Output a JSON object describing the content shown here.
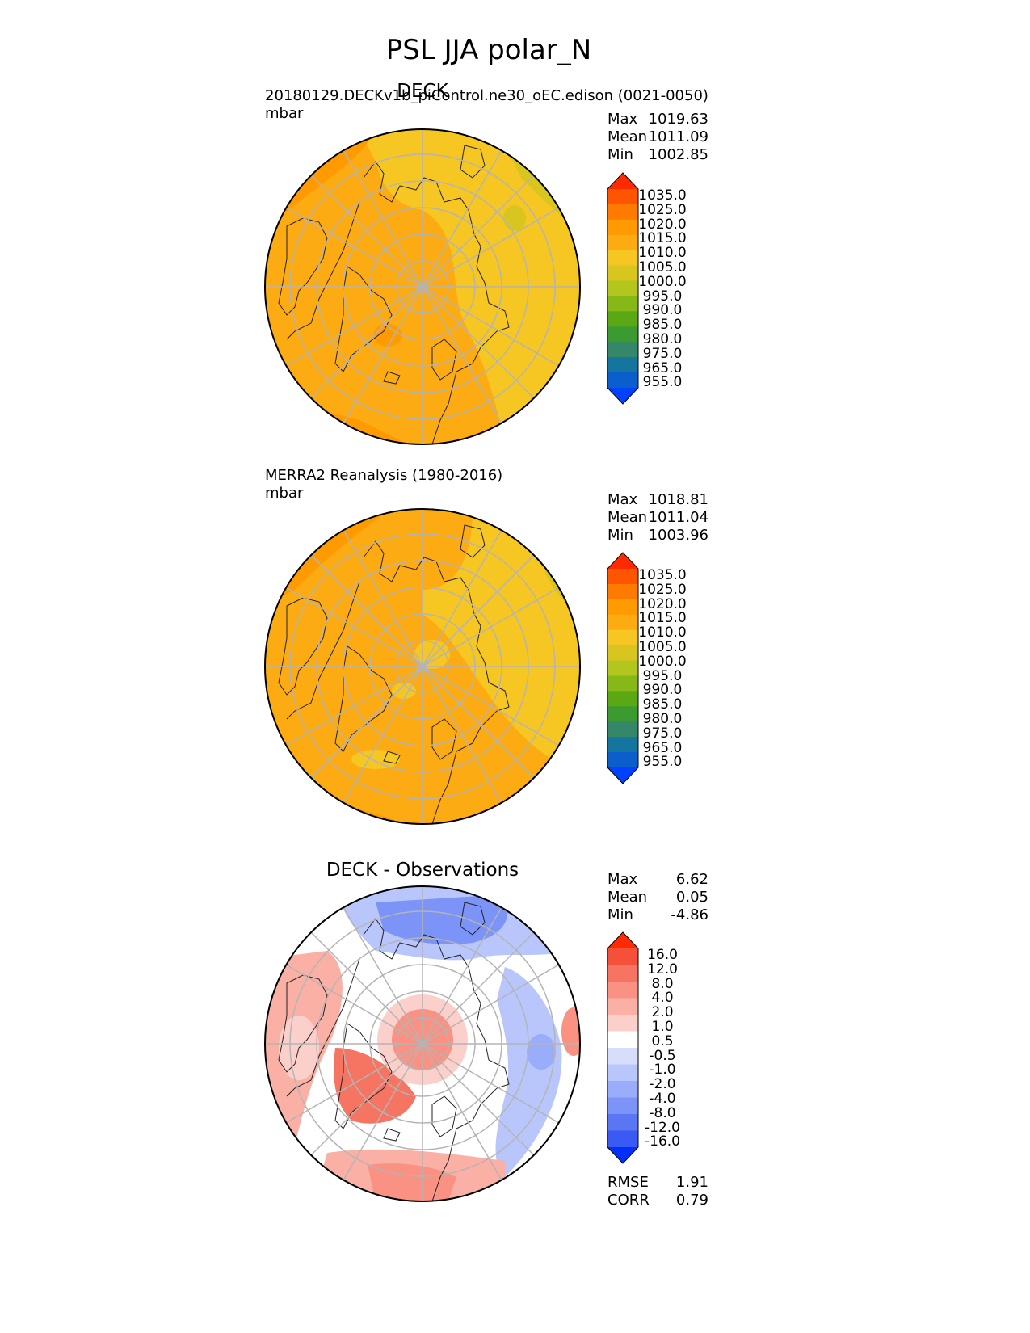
{
  "figure_title": "PSL JJA polar_N",
  "panels": [
    {
      "title": "DECK",
      "subtitle": "20180129.DECKv1b_piControl.ne30_oEC.edison (0021-0050)",
      "units": "mbar",
      "stats": {
        "max_label": "Max",
        "max": "1019.63",
        "mean_label": "Mean",
        "mean": "1011.09",
        "min_label": "Min",
        "min": "1002.85"
      },
      "colorbar_labels": [
        "1035.0",
        "1025.0",
        "1020.0",
        "1015.0",
        "1010.0",
        "1005.0",
        "1000.0",
        "995.0",
        "990.0",
        "985.0",
        "980.0",
        "975.0",
        "965.0",
        "955.0"
      ]
    },
    {
      "title": "",
      "subtitle": "MERRA2 Reanalysis (1980-2016)",
      "units": "mbar",
      "stats": {
        "max_label": "Max",
        "max": "1018.81",
        "mean_label": "Mean",
        "mean": "1011.04",
        "min_label": "Min",
        "min": "1003.96"
      },
      "colorbar_labels": [
        "1035.0",
        "1025.0",
        "1020.0",
        "1015.0",
        "1010.0",
        "1005.0",
        "1000.0",
        "995.0",
        "990.0",
        "985.0",
        "980.0",
        "975.0",
        "965.0",
        "955.0"
      ]
    },
    {
      "title": "DECK - Observations",
      "subtitle": "",
      "units": "",
      "stats": {
        "max_label": "Max",
        "max": "6.62",
        "mean_label": "Mean",
        "mean": "0.05",
        "min_label": "Min",
        "min": "-4.86"
      },
      "colorbar_labels": [
        "16.0",
        "12.0",
        "8.0",
        "4.0",
        "2.0",
        "1.0",
        "0.5",
        "-0.5",
        "-1.0",
        "-2.0",
        "-4.0",
        "-8.0",
        "-12.0",
        "-16.0"
      ],
      "metrics": {
        "rmse_label": "RMSE",
        "rmse": "1.91",
        "corr_label": "CORR",
        "corr": "0.79"
      }
    }
  ],
  "colors": {
    "psl_levels": [
      "#ff2a00",
      "#ff5500",
      "#ff7a00",
      "#ff9a00",
      "#fdab12",
      "#f6c623",
      "#d9c520",
      "#b2c61e",
      "#86b817",
      "#5aa814",
      "#3b9a30",
      "#35876a",
      "#14769e",
      "#0a5fcc",
      "#0040ff"
    ],
    "diff_levels": [
      "#ff2a00",
      "#f5503a",
      "#f67462",
      "#fa9283",
      "#fbb0a6",
      "#fcd0ca",
      "#ffffff",
      "#d6defc",
      "#b9c6fb",
      "#9aadfa",
      "#7c94f8",
      "#5a76f5",
      "#3a5bf3",
      "#0030ff"
    ],
    "map_background": "#fdab12",
    "grid": "#b4b4b4"
  }
}
